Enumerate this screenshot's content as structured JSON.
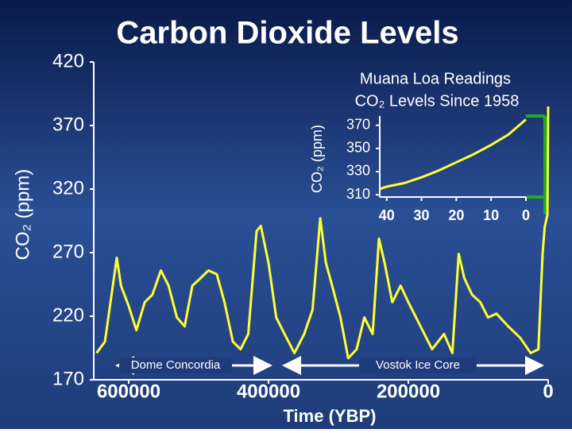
{
  "chart_data": [
    {
      "type": "line",
      "title": "Carbon Dioxide Levels",
      "ylabel": "CO₂ (ppm)",
      "xlabel": "Time (YBP)",
      "annotations": [
        "Dome Concordia",
        "Vostok Ice Core"
      ],
      "color": "#ffff33",
      "xlim": [
        650000,
        0
      ],
      "xticks": [
        600000,
        400000,
        200000,
        0
      ],
      "ylim": [
        170,
        420
      ],
      "yticks": [
        170,
        220,
        270,
        320,
        370,
        420
      ],
      "x": [
        646000,
        634000,
        617000,
        611000,
        600000,
        589000,
        577000,
        566000,
        554000,
        543000,
        531000,
        520000,
        509000,
        497000,
        486000,
        474000,
        463000,
        451000,
        440000,
        429000,
        417000,
        411000,
        400000,
        389000,
        377000,
        363000,
        349000,
        337000,
        326000,
        318000,
        309000,
        297000,
        286000,
        274000,
        263000,
        251000,
        242000,
        234000,
        223000,
        211000,
        200000,
        189000,
        177000,
        166000,
        149000,
        137000,
        128000,
        120000,
        109000,
        97000,
        86000,
        74000,
        57000,
        40000,
        25000,
        14000,
        8000,
        5000,
        1000,
        0
      ],
      "values": [
        191,
        200,
        266,
        244,
        228,
        209,
        231,
        237,
        256,
        244,
        219,
        212,
        244,
        250,
        256,
        253,
        231,
        200,
        194,
        206,
        287,
        291,
        262,
        219,
        206,
        191,
        206,
        225,
        297,
        262,
        244,
        219,
        187,
        194,
        219,
        206,
        281,
        262,
        231,
        244,
        231,
        219,
        206,
        194,
        206,
        191,
        269,
        250,
        237,
        231,
        219,
        222,
        212,
        203,
        191,
        194,
        269,
        290,
        300,
        385
      ]
    },
    {
      "type": "line",
      "title": "Muana Loa Readings",
      "subtitle": "CO₂ Levels Since 1958",
      "ylabel": "CO₂ (ppm)",
      "color": "#ffff33",
      "xlim": [
        42,
        0
      ],
      "xticks": [
        40,
        30,
        20,
        10,
        0
      ],
      "ylim": [
        308,
        378
      ],
      "yticks": [
        310,
        330,
        350,
        370
      ],
      "x": [
        42,
        40,
        35,
        30,
        25,
        20,
        15,
        10,
        5,
        0
      ],
      "values": [
        315,
        317,
        320,
        325,
        331,
        338,
        345,
        353,
        362,
        375
      ]
    }
  ]
}
